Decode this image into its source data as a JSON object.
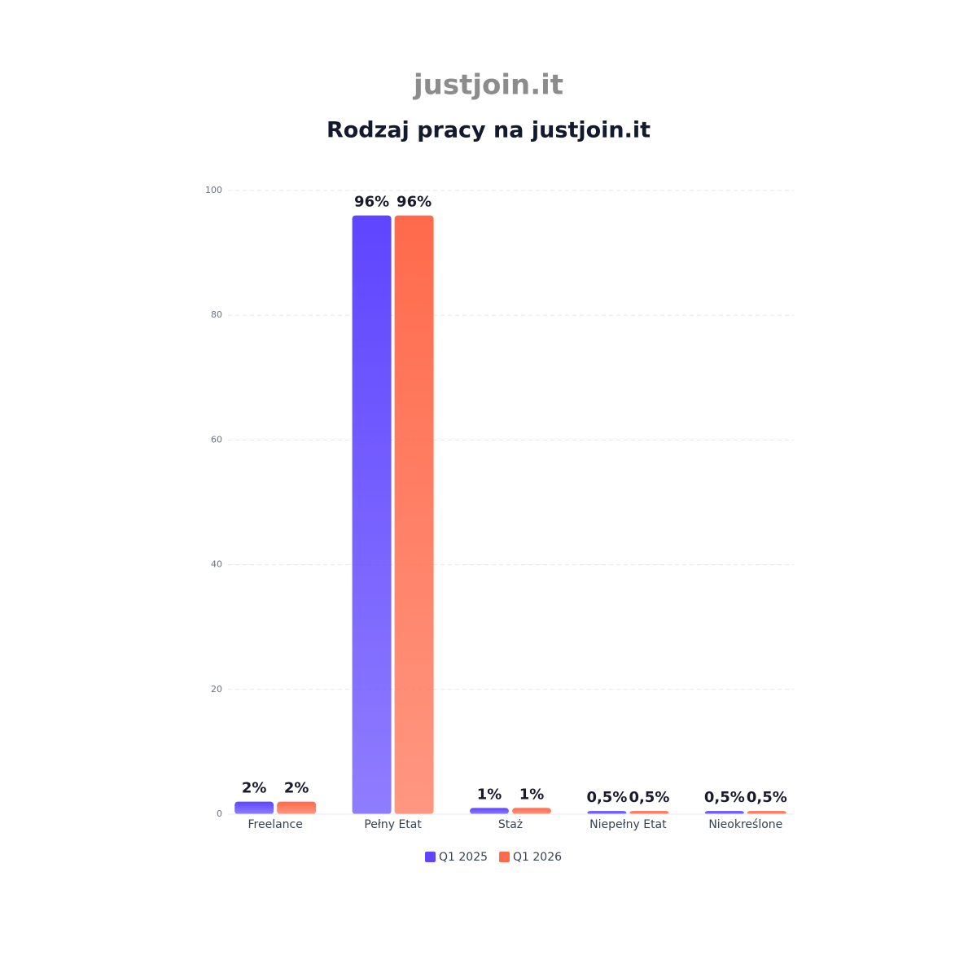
{
  "chart_data": {
    "type": "bar",
    "logo": "justjoin.it",
    "title": "Rodzaj pracy na justjoin.it",
    "categories": [
      "Freelance",
      "Pełny Etat",
      "Staż",
      "Niepełny Etat",
      "Nieokreślone"
    ],
    "series": [
      {
        "name": "Q1 2025",
        "color": "#5f45ff",
        "values": [
          2,
          96,
          1,
          0.5,
          0.5
        ],
        "value_labels": [
          "2%",
          "96%",
          "1%",
          "0,5%",
          "0,5%"
        ]
      },
      {
        "name": "Q1 2026",
        "color": "#ff6a4b",
        "values": [
          2,
          96,
          1,
          0.5,
          0.5
        ],
        "value_labels": [
          "2%",
          "96%",
          "1%",
          "0,5%",
          "0,5%"
        ]
      }
    ],
    "ylim": [
      0,
      100
    ],
    "yticks": [
      0,
      20,
      40,
      60,
      80,
      100
    ],
    "grid": true
  }
}
